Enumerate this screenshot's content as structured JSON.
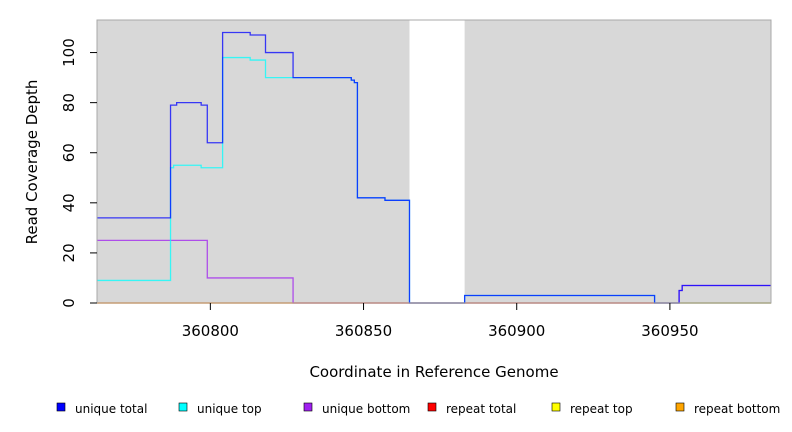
{
  "chart_data": {
    "type": "line",
    "style": "step",
    "xlabel": "Coordinate in Reference Genome",
    "ylabel": "Read Coverage Depth",
    "xlim": [
      360763,
      360983
    ],
    "ylim": [
      0,
      113
    ],
    "xticks": [
      360800,
      360850,
      360900,
      360950
    ],
    "yticks": [
      0,
      20,
      40,
      60,
      80,
      100
    ],
    "grid": false,
    "background": "#d8d8d8",
    "gap_regions": [
      [
        360865,
        360883
      ]
    ],
    "legend_position": "bottom",
    "series": [
      {
        "name": "unique total",
        "color": "#0000ff",
        "x": [
          360763,
          360787,
          360789,
          360797,
          360799,
          360804,
          360813,
          360818,
          360827,
          360845,
          360846,
          360847,
          360848,
          360856,
          360857,
          360865,
          360883,
          360945,
          360953,
          360954,
          360983
        ],
        "y": [
          34,
          79,
          80,
          79,
          64,
          108,
          107,
          100,
          90,
          90,
          89,
          88,
          42,
          42,
          41,
          0,
          3,
          0,
          5,
          7,
          7
        ]
      },
      {
        "name": "unique top",
        "color": "#00ffff",
        "x": [
          360763,
          360787,
          360788,
          360789,
          360797,
          360799,
          360804,
          360813,
          360818,
          360827,
          360845,
          360846,
          360847,
          360848,
          360856,
          360857,
          360865,
          360883,
          360945,
          360983
        ],
        "y": [
          9,
          54,
          55,
          55,
          54,
          54,
          98,
          97,
          90,
          90,
          90,
          89,
          88,
          42,
          42,
          41,
          0,
          3,
          0,
          0
        ]
      },
      {
        "name": "unique bottom",
        "color": "#a020f0",
        "x": [
          360763,
          360799,
          360827,
          360865,
          360883,
          360953,
          360954,
          360983
        ],
        "y": [
          25,
          10,
          0,
          0,
          0,
          5,
          7,
          7
        ]
      },
      {
        "name": "repeat total",
        "color": "#ff0000",
        "x": [
          360763,
          360983
        ],
        "y": [
          0,
          0
        ]
      },
      {
        "name": "repeat top",
        "color": "#ffff00",
        "x": [
          360763,
          360983
        ],
        "y": [
          0,
          0
        ]
      },
      {
        "name": "repeat bottom",
        "color": "#ffa500",
        "x": [
          360763,
          360983
        ],
        "y": [
          0,
          0
        ]
      }
    ]
  }
}
